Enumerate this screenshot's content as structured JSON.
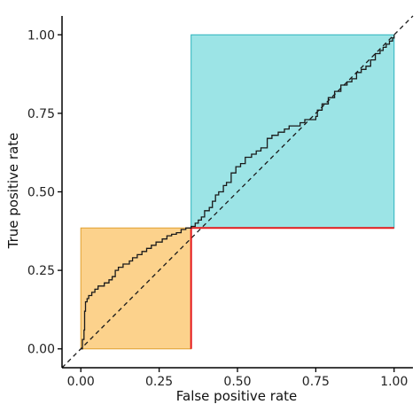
{
  "chart_data": {
    "type": "line",
    "xlabel": "False positive rate",
    "ylabel": "True positive rate",
    "xlim": [
      -0.06,
      1.06
    ],
    "ylim": [
      -0.06,
      1.06
    ],
    "x_ticks": [
      0.0,
      0.25,
      0.5,
      0.75,
      1.0
    ],
    "y_ticks": [
      0.0,
      0.25,
      0.5,
      0.75,
      1.0
    ],
    "x_tick_labels": [
      "0.00",
      "0.25",
      "0.50",
      "0.75",
      "1.00"
    ],
    "y_tick_labels": [
      "0.00",
      "0.25",
      "0.50",
      "0.75",
      "1.00"
    ],
    "grid": false,
    "reference_line": {
      "from": [
        -0.06,
        -0.06
      ],
      "to": [
        1.06,
        1.06
      ],
      "style": "dashed"
    },
    "regions": [
      {
        "x0": 0.0,
        "x1": 0.352,
        "y0": 0.0,
        "y1": 0.385,
        "fill": "#fcd28c",
        "stroke": "#e0a030"
      },
      {
        "x0": 0.352,
        "x1": 1.0,
        "y0": 0.385,
        "y1": 1.0,
        "fill": "#9ce4e6",
        "stroke": "#2bb3bd"
      }
    ],
    "red_segments": [
      {
        "x": [
          0.352,
          0.352
        ],
        "y": [
          0.0,
          0.385
        ]
      },
      {
        "x": [
          0.352,
          1.0
        ],
        "y": [
          0.385,
          0.385
        ]
      }
    ],
    "roc_curve": {
      "x": [
        0.0,
        0.005,
        0.01,
        0.012,
        0.015,
        0.02,
        0.025,
        0.035,
        0.045,
        0.055,
        0.065,
        0.075,
        0.09,
        0.1,
        0.11,
        0.12,
        0.135,
        0.145,
        0.155,
        0.165,
        0.18,
        0.195,
        0.21,
        0.225,
        0.24,
        0.26,
        0.275,
        0.29,
        0.305,
        0.32,
        0.335,
        0.352,
        0.365,
        0.375,
        0.385,
        0.395,
        0.41,
        0.42,
        0.43,
        0.44,
        0.455,
        0.465,
        0.48,
        0.495,
        0.51,
        0.525,
        0.545,
        0.56,
        0.575,
        0.595,
        0.61,
        0.63,
        0.65,
        0.665,
        0.68,
        0.7,
        0.715,
        0.735,
        0.75,
        0.755,
        0.77,
        0.79,
        0.81,
        0.83,
        0.85,
        0.865,
        0.88,
        0.895,
        0.91,
        0.925,
        0.94,
        0.955,
        0.965,
        0.975,
        0.985,
        0.995,
        1.0
      ],
      "y": [
        0.0,
        0.03,
        0.06,
        0.12,
        0.15,
        0.16,
        0.17,
        0.18,
        0.19,
        0.2,
        0.2,
        0.21,
        0.22,
        0.23,
        0.25,
        0.26,
        0.27,
        0.27,
        0.28,
        0.29,
        0.3,
        0.31,
        0.32,
        0.33,
        0.34,
        0.35,
        0.36,
        0.365,
        0.37,
        0.38,
        0.385,
        0.39,
        0.4,
        0.41,
        0.42,
        0.44,
        0.45,
        0.47,
        0.49,
        0.5,
        0.52,
        0.53,
        0.56,
        0.58,
        0.59,
        0.61,
        0.62,
        0.63,
        0.64,
        0.67,
        0.68,
        0.69,
        0.7,
        0.71,
        0.71,
        0.72,
        0.73,
        0.73,
        0.74,
        0.76,
        0.78,
        0.8,
        0.82,
        0.84,
        0.85,
        0.86,
        0.88,
        0.89,
        0.9,
        0.92,
        0.94,
        0.95,
        0.96,
        0.97,
        0.98,
        0.99,
        1.0
      ]
    },
    "colors": {
      "curve": "#1a1a1a",
      "red_line": "#e41a1c",
      "axis": "#000000",
      "reference": "#1a1a1a"
    }
  }
}
